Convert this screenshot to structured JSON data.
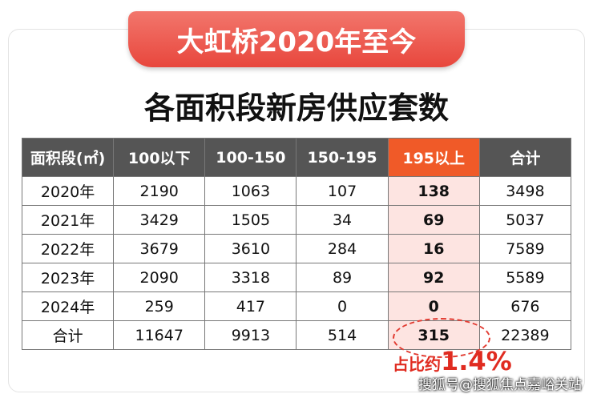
{
  "header": {
    "title": "大虹桥2020年至今",
    "subtitle": "各面积段新房供应套数"
  },
  "table": {
    "columns": [
      "面积段(㎡)",
      "100以下",
      "100-150",
      "150-195",
      "195以上",
      "合计"
    ],
    "highlight_column": 4,
    "rows": [
      [
        "2020年",
        2190,
        1063,
        107,
        138,
        3498
      ],
      [
        "2021年",
        3429,
        1505,
        34,
        69,
        5037
      ],
      [
        "2022年",
        3679,
        3610,
        284,
        16,
        7589
      ],
      [
        "2023年",
        2090,
        3318,
        89,
        92,
        5589
      ],
      [
        "2024年",
        259,
        417,
        0,
        0,
        676
      ],
      [
        "合计",
        11647,
        9913,
        514,
        315,
        22389
      ]
    ]
  },
  "annotation": {
    "label": "占比约",
    "value": "1.4%"
  },
  "watermark": "搜狐号@搜狐焦点嘉峪关站"
}
